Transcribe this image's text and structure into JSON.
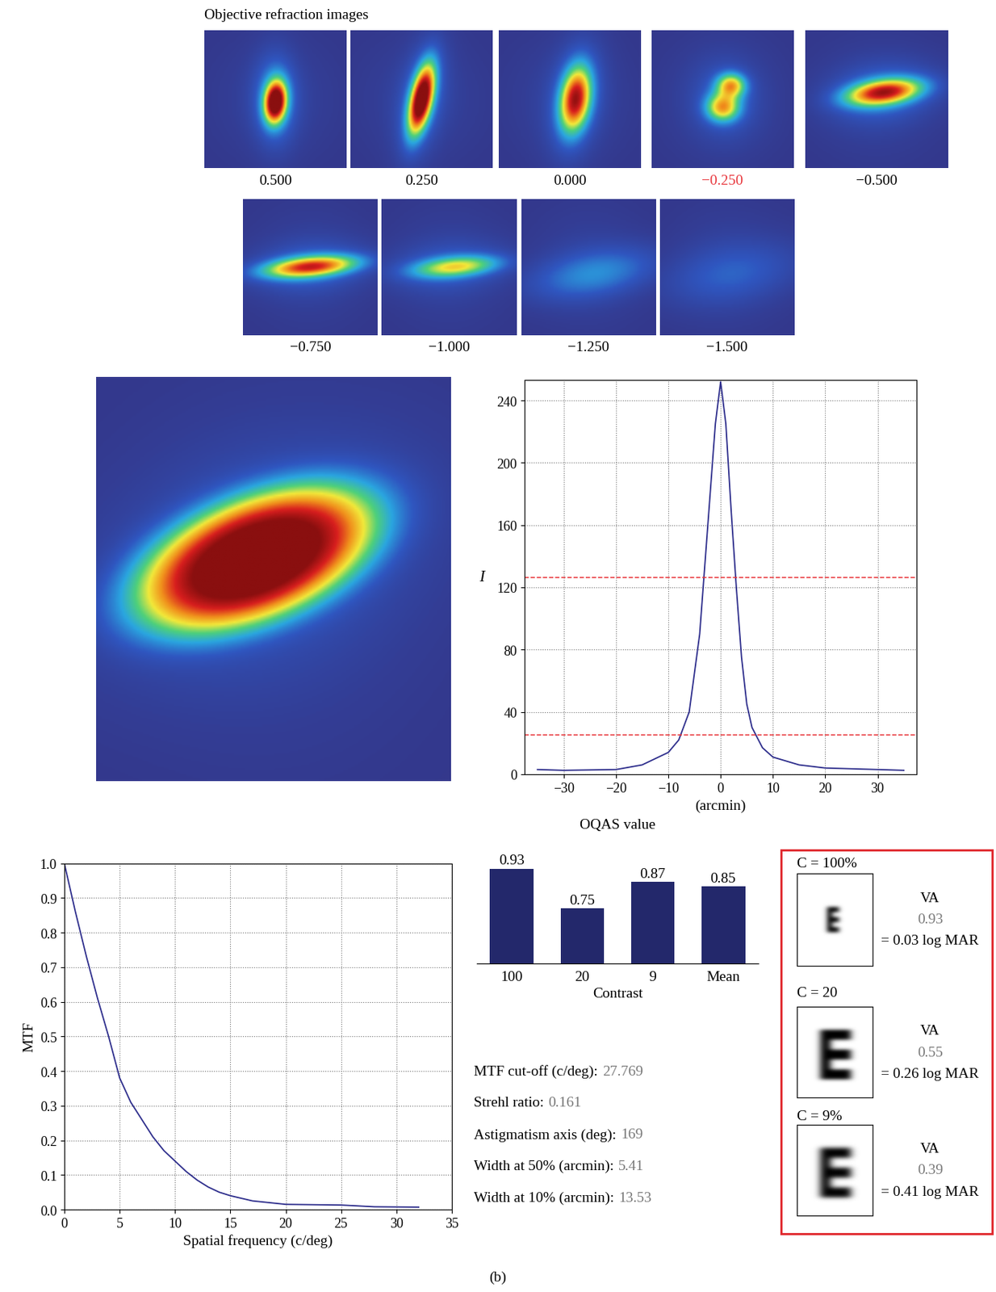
{
  "header": {
    "title": "Objective refraction images"
  },
  "refraction_images": [
    {
      "label": "0.500",
      "color": "#000000"
    },
    {
      "label": "0.250",
      "color": "#000000"
    },
    {
      "label": "0.000",
      "color": "#000000"
    },
    {
      "label": "−0.250",
      "color": "#e8353b"
    },
    {
      "label": "−0.500",
      "color": "#000000"
    },
    {
      "label": "−0.750",
      "color": "#000000"
    },
    {
      "label": "−1.000",
      "color": "#000000"
    },
    {
      "label": "−1.250",
      "color": "#000000"
    },
    {
      "label": "−1.500",
      "color": "#000000"
    }
  ],
  "chart_data": [
    {
      "type": "line",
      "x": [
        -35,
        -30,
        -20,
        -15,
        -10,
        -8,
        -6,
        -4,
        -3,
        -2,
        -1,
        0,
        1,
        2,
        3,
        4,
        5,
        6,
        8,
        10,
        15,
        20,
        30,
        35
      ],
      "values": [
        3,
        2.5,
        3,
        6,
        14,
        22,
        40,
        90,
        135,
        180,
        225,
        252,
        225,
        170,
        120,
        75,
        45,
        30,
        17,
        11,
        6,
        4,
        3,
        2.5
      ],
      "color": "#2e2e8c",
      "line_style": "solid",
      "reference_lines": {
        "values": [
          126.5,
          25.3
        ],
        "color": "#e8363a",
        "line_style": "dashed"
      },
      "xlabel": "(arcmin)",
      "ylabel": "I",
      "xlim": [
        -37.5,
        37.5
      ],
      "ylim": [
        0,
        253
      ],
      "xticks": [
        {
          "value": -30,
          "label": "−30"
        },
        {
          "value": -20,
          "label": "−20"
        },
        {
          "value": -10,
          "label": "−10"
        },
        0,
        10,
        20,
        30
      ],
      "yticks": [
        0,
        40,
        80,
        120,
        160,
        200,
        240
      ],
      "grid": true
    },
    {
      "type": "line",
      "x": [
        0,
        1,
        2,
        3,
        4,
        5,
        6,
        7,
        8,
        9,
        10,
        11,
        12,
        13,
        14,
        15,
        17,
        20,
        25,
        28,
        32
      ],
      "values": [
        1.0,
        0.86,
        0.73,
        0.61,
        0.5,
        0.38,
        0.31,
        0.26,
        0.21,
        0.17,
        0.14,
        0.11,
        0.085,
        0.065,
        0.05,
        0.04,
        0.025,
        0.015,
        0.013,
        0.008,
        0.007
      ],
      "color": "#2e2e8c",
      "line_style": "solid",
      "xlabel": "Spatial frequency (c/deg)",
      "ylabel": "MTF",
      "xlim": [
        0,
        35
      ],
      "ylim": [
        0.0,
        1.0
      ],
      "xticks": [
        0,
        5,
        10,
        15,
        20,
        25,
        30,
        35
      ],
      "yticks": [
        0.0,
        0.1,
        0.2,
        0.3,
        0.4,
        0.5,
        0.6,
        0.7,
        0.8,
        0.9,
        1.0
      ],
      "grid": true
    },
    {
      "type": "bar",
      "title": "OQAS value",
      "xlabel": "Contrast",
      "categories": [
        "100",
        "20",
        "9",
        "Mean"
      ],
      "values": [
        0.93,
        0.75,
        0.87,
        0.85
      ],
      "color": "#23286b",
      "ylim": [
        0.5,
        1.0
      ],
      "data_labels": true,
      "tick_labels": "x"
    }
  ],
  "metrics": [
    {
      "label": "MTF cut-off (c/deg):",
      "value": "27.769"
    },
    {
      "label": "Strehl ratio:",
      "value": "0.161"
    },
    {
      "label": "Astigmatism axis (deg):",
      "value": "169"
    },
    {
      "label": "Width at 50% (arcmin):",
      "value": "5.41"
    },
    {
      "label": "Width at 10% (arcmin):",
      "value": "13.53"
    }
  ],
  "visual_acuity": [
    {
      "contrast": "C = 100%",
      "label": "VA",
      "value": "0.93",
      "logmar": "= 0.03 log MAR"
    },
    {
      "contrast": "C = 20",
      "label": "VA",
      "value": "0.55",
      "logmar": "= 0.26 log MAR"
    },
    {
      "contrast": "C = 9%",
      "label": "VA",
      "value": "0.39",
      "logmar": "= 0.41 log MAR"
    }
  ],
  "caption": "(b)"
}
